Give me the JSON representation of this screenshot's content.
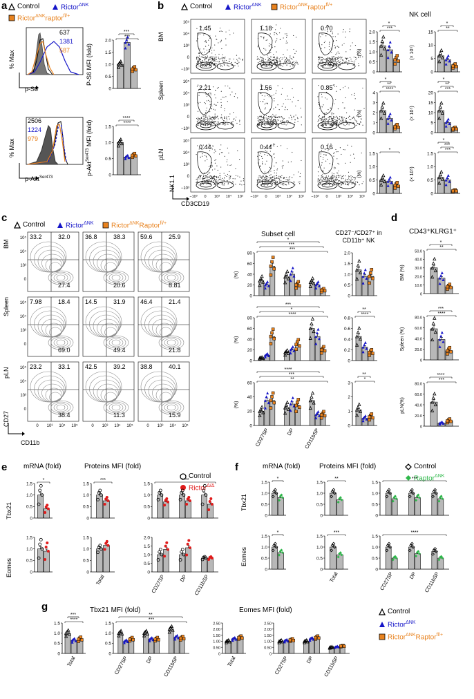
{
  "panels": {
    "a": "a",
    "b": "b",
    "c": "c",
    "d": "d",
    "e": "e",
    "f": "f",
    "g": "g"
  },
  "legend_main": {
    "control": "Control",
    "rictor": "Rictor",
    "rictor_sup": "ΔNK",
    "raptor": "Rictor",
    "raptor_sup": "ΔNK",
    "raptor2": "raptor",
    "raptor2_sup": "fl/+"
  },
  "legend_main_caps": {
    "raptor2": "Raptor"
  },
  "colors": {
    "control": "#000000",
    "rictor": "#1515c8",
    "raptor": "#e8821e",
    "gray": "#b8b8b8",
    "red": "#e01b1b",
    "green": "#2eb84a"
  },
  "panel_a": {
    "hist1": {
      "ylabel": "% Max",
      "xlabel": "p-S6",
      "values": [
        "637",
        "1381",
        "587"
      ]
    },
    "hist2": {
      "ylabel": "% Max",
      "xlabel": "p-Akt",
      "xlabel_sup": "Ser473",
      "values": [
        "2506",
        "1224",
        "979"
      ]
    },
    "bar1": {
      "ylabel": "P-S6 MFI (fold)",
      "ticks": [
        "0",
        "0.5",
        "1.0",
        "1.5",
        "2.0"
      ],
      "sig": [
        "***",
        "***"
      ]
    },
    "bar2": {
      "ylabel": "p-Akt",
      "ylabel_sup": "Ser473",
      "ylabel2": " MFI (fold)",
      "ticks": [
        "0",
        "0.5",
        "1.0",
        "1.5"
      ],
      "sig": [
        "****",
        "****"
      ]
    }
  },
  "panel_b": {
    "title": "NK cell",
    "rows": [
      "BM",
      "Spleen",
      "pLN"
    ],
    "gate_values": [
      [
        "1.45",
        "1.18",
        "0.70"
      ],
      [
        "2.21",
        "1.56",
        "0.85"
      ],
      [
        "0.44",
        "0.44",
        "0.16"
      ]
    ],
    "xlabel": "CD3CD19",
    "ylabel": "NK1.1",
    "yticks": [
      "10⁵",
      "10⁴",
      "10³",
      "0",
      "−10³"
    ],
    "xticks": [
      "−10³",
      "0",
      "10³",
      "10⁴",
      "10⁵"
    ],
    "bar_pct": {
      "unit": "(%)",
      "rows": [
        {
          "ticks": [
            "0",
            "0.5",
            "1.0",
            "1.5",
            "2.0"
          ],
          "sig": [
            "***",
            "*"
          ]
        },
        {
          "ticks": [
            "0",
            "1",
            "2",
            "3",
            "4"
          ],
          "sig": [
            "****",
            "**",
            "*"
          ]
        },
        {
          "ticks": [
            "0",
            "0.5",
            "1.0",
            "1.5"
          ],
          "sig": [
            "*"
          ]
        }
      ]
    },
    "bar_cnt": {
      "unit": "(× 10⁵)",
      "rows": [
        {
          "ticks": [
            "0",
            "5",
            "10",
            "15"
          ],
          "sig": [
            "**",
            "*"
          ]
        },
        {
          "ticks": [
            "0",
            "5",
            "10",
            "15",
            "20"
          ],
          "sig": [
            "***",
            "**",
            "*"
          ]
        },
        {
          "ticks": [
            "0",
            "0.5",
            "1.0",
            "1.5"
          ],
          "sig": [
            "***",
            "***",
            "*"
          ]
        }
      ]
    }
  },
  "panel_c": {
    "rows": [
      "BM",
      "Spleen",
      "pLN"
    ],
    "quad_values": [
      [
        [
          "33.2",
          "32.0",
          "27.4"
        ],
        [
          "36.8",
          "38.3",
          "20.6"
        ],
        [
          "59.6",
          "25.9",
          "8.81"
        ]
      ],
      [
        [
          "7.98",
          "18.4",
          "69.0"
        ],
        [
          "14.5",
          "31.9",
          "49.4"
        ],
        [
          "46.4",
          "21.4",
          "21.8"
        ]
      ],
      [
        [
          "23.2",
          "33.1",
          "38.4"
        ],
        [
          "42.5",
          "39.2",
          "11.3"
        ],
        [
          "38.8",
          "40.1",
          "15.9"
        ]
      ]
    ],
    "xlabel": "CD11b",
    "ylabel": "CD27",
    "yticks": [
      "10⁵",
      "10⁴",
      "10³",
      "0"
    ],
    "xticks": [
      "0",
      "10³",
      "10⁴",
      "10⁵"
    ],
    "subset_title": "Subset cell",
    "cd27_title": "CD27⁻/CD27⁺ in CD11b⁺ NK",
    "categories": [
      "CD27SP",
      "DP",
      "CD11bSP"
    ],
    "unit": "(%)",
    "subset_ticks": [
      [
        "0",
        "20",
        "40",
        "60",
        "80"
      ],
      [
        "0",
        "20",
        "40",
        "60",
        "80"
      ],
      [
        "0",
        "20",
        "40",
        "60"
      ]
    ],
    "cd27_ticks": [
      [
        "0",
        "0.5",
        "1.0",
        "1.5",
        "2.0"
      ],
      [
        "0",
        "0.2",
        "0.4",
        "0.6",
        "0.8"
      ],
      [
        "0",
        "1",
        "2",
        "3"
      ]
    ],
    "sig_subset": [
      [
        "***",
        "***",
        "*",
        "****",
        "***",
        "***"
      ],
      [
        "****",
        "*",
        "***",
        "**",
        "****",
        "****",
        "*"
      ],
      [
        "**",
        "***",
        "****",
        "***"
      ]
    ],
    "sig_cd27": [
      [],
      [
        "****",
        "**",
        "*"
      ],
      [
        "*",
        "**"
      ]
    ]
  },
  "panel_d": {
    "title": "CD43⁺KLRG1⁺",
    "rows": [
      {
        "ylabel": "BM (%)",
        "ticks": [
          "0",
          "5.0",
          "10.0",
          "15.0",
          "20.0",
          "25.0",
          "30.0",
          "35.0",
          "40.0",
          "45.0",
          "50.0"
        ],
        "sig": [
          "**",
          "*",
          "*"
        ]
      },
      {
        "ylabel": "Spleen (%)",
        "ticks": [
          "0",
          "20.0",
          "40.0",
          "60.0",
          "80.0"
        ],
        "sig": [
          "****",
          "***",
          "***"
        ]
      },
      {
        "ylabel": "pLN(%)",
        "ticks": [
          "0",
          "20.0",
          "40.0",
          "60.0",
          "80.0"
        ],
        "sig": [
          "***",
          "****"
        ]
      }
    ]
  },
  "panel_e": {
    "title_mrna": "mRNA (fold)",
    "title_prot": "Proteins MFI (fold)",
    "legend": {
      "control": "Control",
      "rictor": "Rictor",
      "rictor_sup": "Δ/Δ"
    },
    "rows": [
      "Tbx21",
      "Eomes"
    ],
    "mrna_ticks": [
      "0",
      "0.5",
      "1.0",
      "1.5"
    ],
    "prot_ticks": [
      "0",
      "0.5",
      "1.0",
      "1.5"
    ],
    "prot_ticks2": [
      "0",
      "0.5",
      "1.0",
      "1.5",
      "2.0"
    ],
    "cats": [
      "Total",
      "CD27SP",
      "DP",
      "CD11bSP"
    ],
    "sig_tbx_mrna": "*",
    "sig_tbx_total": "***",
    "sig_tbx_sub": [
      "****",
      "****",
      "**"
    ]
  },
  "panel_f": {
    "title_mrna": "mRNA (fold)",
    "title_prot": "Proteins MFI (fold)",
    "legend": {
      "control": "Control",
      "raptor": "Raptor",
      "raptor_sup": "ΔNK"
    },
    "rows": [
      "Tbx21",
      "Eomes"
    ],
    "cats": [
      "Total",
      "CD27SP",
      "DP",
      "CD11bSP"
    ],
    "sig_tbx": [
      "*",
      "**",
      "***",
      "*",
      "***"
    ],
    "sig_eomes": [
      "*",
      "***",
      "****",
      "**",
      "***"
    ]
  },
  "panel_g": {
    "title_tbx": "Tbx21 MFI (fold)",
    "title_eomes": "Eomes MFI (fold)",
    "cats1": [
      "Total"
    ],
    "cats2": [
      "CD27SP",
      "DP",
      "CD11bSP"
    ],
    "tbx_ticks": [
      "0",
      "0.5",
      "1.0",
      "1.5"
    ],
    "eomes_ticks": [
      "0",
      "0.25",
      "0.50",
      "0.75",
      "1.00",
      "1.25",
      "1.50",
      "1.75",
      "2.00",
      "2.25",
      "2.50"
    ],
    "sig_tbx_total": [
      "****",
      "***"
    ],
    "sig_tbx_sub": [
      "***",
      "**",
      "***",
      "****",
      "**"
    ]
  }
}
